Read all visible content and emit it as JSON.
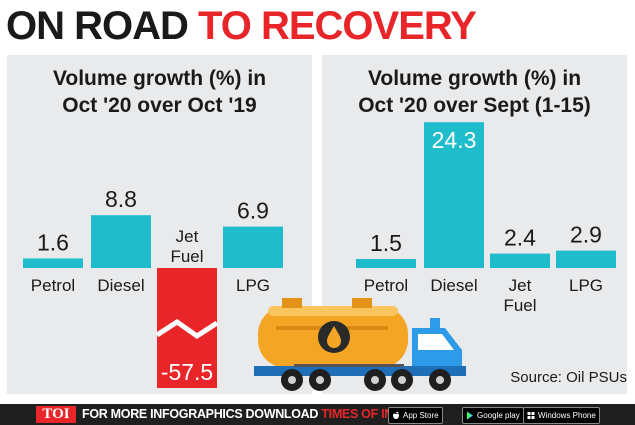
{
  "headline": {
    "part1": "ON ROAD",
    "part2": "TO RECOVERY"
  },
  "colors": {
    "accent": "#e8262a",
    "bar": "#1fbdcc",
    "negative_bar": "#e8262a",
    "panel": "#e9eaec"
  },
  "chart_data": [
    {
      "type": "bar",
      "title_line1": "Volume growth (%) in",
      "title_line2": "Oct '20 over Oct '19",
      "categories": [
        "Petrol",
        "Diesel",
        "Jet Fuel",
        "LPG"
      ],
      "values": [
        1.6,
        8.8,
        -57.5,
        6.9
      ],
      "value_labels": [
        "1.6",
        "8.8",
        "-57.5",
        "6.9"
      ],
      "axis_break": true
    },
    {
      "type": "bar",
      "title_line1": "Volume growth (%) in",
      "title_line2": "Oct '20 over Sept (1-15)",
      "categories": [
        "Petrol",
        "Diesel",
        "Jet Fuel",
        "LPG"
      ],
      "values": [
        1.5,
        24.3,
        2.4,
        2.9
      ],
      "value_labels": [
        "1.5",
        "24.3",
        "2.4",
        "2.9"
      ]
    }
  ],
  "source": "Source: Oil PSUs",
  "footer": {
    "logo": "TOI",
    "text": "FOR MORE  INFOGRAPHICS DOWNLOAD ",
    "brand": "TIMES OF INDIA  APP",
    "stores": [
      "App Store",
      "Google play",
      "Windows Phone"
    ]
  }
}
